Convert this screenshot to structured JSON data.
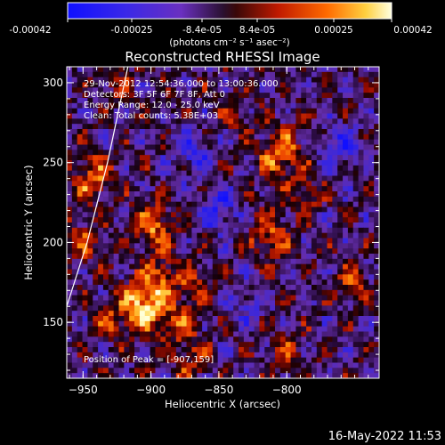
{
  "colorbar": {
    "ticks": [
      "-0.00042",
      "-0.00025",
      "-8.4e-05",
      "8.4e-05",
      "0.00025",
      "0.00042"
    ],
    "unit_label": "(photons cm⁻² s⁻¹ asec⁻²)",
    "range": [
      -0.00042,
      0.00042
    ]
  },
  "chart_data": {
    "type": "heatmap",
    "title": "Reconstructed RHESSI Image",
    "xlabel": "Heliocentric X (arcsec)",
    "ylabel": "Heliocentric Y (arcsec)",
    "xlim": [
      -962,
      -732
    ],
    "ylim": [
      115,
      310
    ],
    "x_ticks": [
      {
        "value": -950,
        "label": "−950"
      },
      {
        "value": -900,
        "label": "−900"
      },
      {
        "value": -850,
        "label": "−850"
      },
      {
        "value": -800,
        "label": "−800"
      }
    ],
    "y_ticks": [
      {
        "value": 150,
        "label": "150"
      },
      {
        "value": 200,
        "label": "200"
      },
      {
        "value": 250,
        "label": "250"
      },
      {
        "value": 300,
        "label": "300"
      }
    ],
    "annotations": [
      "29-Nov-2012 12:54:36.000 to 13:00:36.000",
      "Detectors: 3F 5F 6F 7F 8F, Att 0",
      "Energy Range: 12.0 - 25.0 keV",
      "Clean:   Total counts: 5.38E+03"
    ],
    "peak_label": "Position of Peak = [-907,159]",
    "peak": [
      -907,
      159
    ],
    "sources": [
      {
        "x": -907,
        "y": 159,
        "sigma": 11,
        "amp": 1.0
      },
      {
        "x": -893,
        "y": 178,
        "sigma": 9,
        "amp": 0.6
      },
      {
        "x": -898,
        "y": 210,
        "sigma": 10,
        "amp": 0.7
      },
      {
        "x": -878,
        "y": 150,
        "sigma": 10,
        "amp": 0.55
      },
      {
        "x": -868,
        "y": 175,
        "sigma": 8,
        "amp": 0.45
      },
      {
        "x": -942,
        "y": 240,
        "sigma": 10,
        "amp": 0.7
      },
      {
        "x": -950,
        "y": 200,
        "sigma": 9,
        "amp": 0.45
      },
      {
        "x": -933,
        "y": 150,
        "sigma": 8,
        "amp": 0.4
      },
      {
        "x": -805,
        "y": 255,
        "sigma": 11,
        "amp": 0.75
      },
      {
        "x": -812,
        "y": 205,
        "sigma": 10,
        "amp": 0.6
      },
      {
        "x": -785,
        "y": 230,
        "sigma": 8,
        "amp": 0.45
      },
      {
        "x": -752,
        "y": 175,
        "sigma": 8,
        "amp": 0.5
      },
      {
        "x": -840,
        "y": 280,
        "sigma": 8,
        "amp": 0.3
      },
      {
        "x": -800,
        "y": 130,
        "sigma": 10,
        "amp": 0.4
      },
      {
        "x": -870,
        "y": 125,
        "sigma": 9,
        "amp": 0.4
      },
      {
        "x": -925,
        "y": 300,
        "sigma": 8,
        "amp": 0.35
      },
      {
        "x": -850,
        "y": 220,
        "sigma": 9,
        "amp": -0.6
      },
      {
        "x": -870,
        "y": 255,
        "sigma": 10,
        "amp": -0.5
      },
      {
        "x": -760,
        "y": 260,
        "sigma": 10,
        "amp": -0.55
      },
      {
        "x": -830,
        "y": 160,
        "sigma": 9,
        "amp": -0.35
      }
    ],
    "limb": [
      [
        -962,
        160
      ],
      [
        -947,
        200
      ],
      [
        -932,
        250
      ],
      [
        -917,
        310
      ]
    ],
    "grid": false
  },
  "timestamp": "16-May-2022 11:53",
  "colors": {
    "limb": "#ffffff",
    "background": "#000000"
  }
}
